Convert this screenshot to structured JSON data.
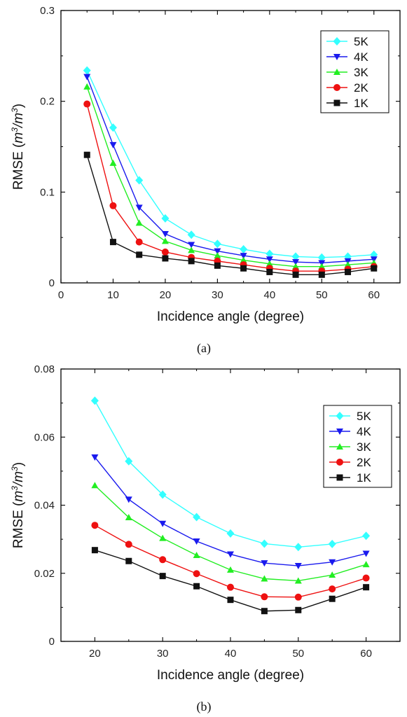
{
  "chart_data": [
    {
      "type": "line",
      "panel_label": "(a)",
      "xlabel": "Incidence angle (degree)",
      "ylabel_main": "RMSE (",
      "ylabel_unit_base": "m",
      "ylabel_unit_sup": "3",
      "ylabel_slash": "/",
      "ylabel_close": ")",
      "xlim": [
        0,
        65
      ],
      "ylim": [
        0,
        0.3
      ],
      "xticks": [
        0,
        10,
        20,
        30,
        40,
        50,
        60
      ],
      "yticks": [
        0,
        0.1,
        0.2,
        0.3
      ],
      "ytick_labels": [
        "0",
        "0.1",
        "0.2",
        "0.3"
      ],
      "legend_position": "top-right",
      "x": [
        5,
        10,
        15,
        20,
        25,
        30,
        35,
        40,
        45,
        50,
        55,
        60
      ],
      "series": [
        {
          "name": "5K",
          "color": "#33ffff",
          "marker": "diamond",
          "values": [
            0.234,
            0.171,
            0.113,
            0.071,
            0.053,
            0.043,
            0.037,
            0.032,
            0.029,
            0.028,
            0.029,
            0.031
          ]
        },
        {
          "name": "4K",
          "color": "#1a1aee",
          "marker": "triangle-down",
          "values": [
            0.227,
            0.152,
            0.083,
            0.054,
            0.042,
            0.035,
            0.03,
            0.026,
            0.023,
            0.022,
            0.024,
            0.026
          ]
        },
        {
          "name": "3K",
          "color": "#22ee22",
          "marker": "triangle-up",
          "values": [
            0.216,
            0.132,
            0.066,
            0.046,
            0.036,
            0.03,
            0.025,
            0.021,
            0.018,
            0.018,
            0.02,
            0.022
          ]
        },
        {
          "name": "2K",
          "color": "#ee1111",
          "marker": "circle",
          "values": [
            0.197,
            0.085,
            0.045,
            0.034,
            0.028,
            0.024,
            0.02,
            0.016,
            0.013,
            0.013,
            0.015,
            0.018
          ]
        },
        {
          "name": "1K",
          "color": "#111111",
          "marker": "square",
          "values": [
            0.141,
            0.045,
            0.031,
            0.027,
            0.024,
            0.019,
            0.016,
            0.012,
            0.009,
            0.009,
            0.012,
            0.016
          ]
        }
      ]
    },
    {
      "type": "line",
      "panel_label": "(b)",
      "xlabel": "Incidence angle (degree)",
      "ylabel_main": "RMSE (",
      "ylabel_unit_base": "m",
      "ylabel_unit_sup": "3",
      "ylabel_slash": "/",
      "ylabel_close": ")",
      "xlim": [
        15,
        65
      ],
      "ylim": [
        0,
        0.08
      ],
      "xticks": [
        20,
        30,
        40,
        50,
        60
      ],
      "yticks": [
        0,
        0.02,
        0.04,
        0.06,
        0.08
      ],
      "ytick_labels": [
        "0",
        "0.02",
        "0.04",
        "0.06",
        "0.08"
      ],
      "legend_position": "top-right",
      "x": [
        20,
        25,
        30,
        35,
        40,
        45,
        50,
        55,
        60
      ],
      "series": [
        {
          "name": "5K",
          "color": "#33ffff",
          "marker": "diamond",
          "values": [
            0.0707,
            0.0529,
            0.0431,
            0.0365,
            0.0317,
            0.0287,
            0.0277,
            0.0286,
            0.031
          ]
        },
        {
          "name": "4K",
          "color": "#1a1aee",
          "marker": "triangle-down",
          "values": [
            0.0541,
            0.0417,
            0.0346,
            0.0294,
            0.0256,
            0.023,
            0.0222,
            0.0233,
            0.0258
          ]
        },
        {
          "name": "3K",
          "color": "#22ee22",
          "marker": "triangle-up",
          "values": [
            0.0458,
            0.0364,
            0.0303,
            0.0253,
            0.021,
            0.0184,
            0.0178,
            0.0195,
            0.0226
          ]
        },
        {
          "name": "2K",
          "color": "#ee1111",
          "marker": "circle",
          "values": [
            0.0341,
            0.0285,
            0.024,
            0.0199,
            0.0159,
            0.0131,
            0.013,
            0.0154,
            0.0186
          ]
        },
        {
          "name": "1K",
          "color": "#111111",
          "marker": "square",
          "values": [
            0.0268,
            0.0236,
            0.0192,
            0.0162,
            0.0122,
            0.0089,
            0.0092,
            0.0125,
            0.0159
          ]
        }
      ]
    }
  ]
}
